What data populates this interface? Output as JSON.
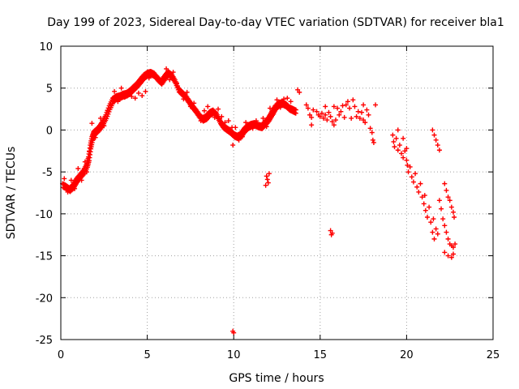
{
  "chart_data": {
    "type": "scatter",
    "title": "Day 199 of 2023, Sidereal Day-to-day VTEC variation (SDTVAR) for receiver bla1",
    "xlabel": "GPS time / hours",
    "ylabel": "SDTVAR / TECUs",
    "xlim": [
      0,
      25
    ],
    "ylim": [
      -25,
      10
    ],
    "xticks": [
      "0",
      "5",
      "10",
      "15",
      "20",
      "25"
    ],
    "yticks": [
      "10",
      "5",
      "0",
      "-5",
      "-10",
      "-15",
      "-20",
      "-25"
    ],
    "grid": true,
    "marker": "+",
    "color": "#ff0000",
    "series": [
      {
        "name": "SDTVAR",
        "trace": [
          [
            0.1,
            -6.4
          ],
          [
            0.3,
            -6.6
          ],
          [
            0.5,
            -6.9
          ],
          [
            0.7,
            -6.5
          ],
          [
            0.9,
            -5.8
          ],
          [
            1.1,
            -5.3
          ],
          [
            1.3,
            -4.8
          ],
          [
            1.5,
            -4.0
          ],
          [
            1.6,
            -3.2
          ],
          [
            1.7,
            -1.8
          ],
          [
            1.8,
            -0.8
          ],
          [
            1.9,
            -0.2
          ],
          [
            2.0,
            0.0
          ],
          [
            2.2,
            0.4
          ],
          [
            2.4,
            1.0
          ],
          [
            2.6,
            1.8
          ],
          [
            2.8,
            2.9
          ],
          [
            3.0,
            3.8
          ],
          [
            3.2,
            4.1
          ],
          [
            3.4,
            4.2
          ],
          [
            3.6,
            4.4
          ],
          [
            3.8,
            4.5
          ],
          [
            4.0,
            4.8
          ],
          [
            4.2,
            5.2
          ],
          [
            4.4,
            5.6
          ],
          [
            4.6,
            6.1
          ],
          [
            4.8,
            6.6
          ],
          [
            5.0,
            6.9
          ],
          [
            5.2,
            7.0
          ],
          [
            5.4,
            6.8
          ],
          [
            5.6,
            6.3
          ],
          [
            5.8,
            5.9
          ],
          [
            6.0,
            6.5
          ],
          [
            6.2,
            7.0
          ],
          [
            6.4,
            6.7
          ],
          [
            6.6,
            6.0
          ],
          [
            6.8,
            5.0
          ],
          [
            7.0,
            4.6
          ],
          [
            7.2,
            4.2
          ],
          [
            7.4,
            3.6
          ],
          [
            7.6,
            3.0
          ],
          [
            7.8,
            2.5
          ],
          [
            8.0,
            1.9
          ],
          [
            8.2,
            1.5
          ],
          [
            8.4,
            1.7
          ],
          [
            8.6,
            2.2
          ],
          [
            8.8,
            2.4
          ],
          [
            9.0,
            2.0
          ],
          [
            9.2,
            1.2
          ],
          [
            9.4,
            0.6
          ],
          [
            9.6,
            0.3
          ],
          [
            9.8,
            0.0
          ],
          [
            10.0,
            -0.4
          ],
          [
            10.2,
            -0.6
          ],
          [
            10.4,
            -0.4
          ],
          [
            10.6,
            0.2
          ],
          [
            10.8,
            0.6
          ],
          [
            11.0,
            0.8
          ],
          [
            11.2,
            0.9
          ],
          [
            11.4,
            0.7
          ],
          [
            11.6,
            0.6
          ],
          [
            11.8,
            1.0
          ],
          [
            12.0,
            1.5
          ],
          [
            12.2,
            2.2
          ],
          [
            12.4,
            2.9
          ],
          [
            12.6,
            3.3
          ],
          [
            12.8,
            3.4
          ],
          [
            13.0,
            3.2
          ],
          [
            13.2,
            2.8
          ],
          [
            13.4,
            2.6
          ],
          [
            13.6,
            2.4
          ]
        ],
        "points": [
          [
            0.2,
            -5.8
          ],
          [
            0.4,
            -7.4
          ],
          [
            0.6,
            -6.0
          ],
          [
            0.8,
            -7.0
          ],
          [
            1.0,
            -4.6
          ],
          [
            1.2,
            -6.0
          ],
          [
            1.4,
            -3.8
          ],
          [
            1.5,
            -5.0
          ],
          [
            1.65,
            -2.6
          ],
          [
            3.1,
            4.6
          ],
          [
            3.3,
            3.4
          ],
          [
            3.5,
            5.0
          ],
          [
            3.7,
            3.9
          ],
          [
            3.9,
            4.2
          ],
          [
            4.1,
            4.0
          ],
          [
            4.3,
            3.8
          ],
          [
            4.5,
            4.4
          ],
          [
            4.7,
            4.1
          ],
          [
            4.9,
            4.6
          ],
          [
            5.1,
            6.2
          ],
          [
            6.1,
            7.3
          ],
          [
            6.3,
            6.0
          ],
          [
            6.5,
            6.9
          ],
          [
            6.7,
            5.6
          ],
          [
            6.9,
            4.8
          ],
          [
            7.1,
            3.7
          ],
          [
            7.3,
            4.5
          ],
          [
            7.5,
            2.8
          ],
          [
            7.7,
            3.2
          ],
          [
            7.9,
            2.0
          ],
          [
            8.1,
            1.1
          ],
          [
            8.3,
            2.3
          ],
          [
            8.5,
            2.8
          ],
          [
            8.7,
            1.8
          ],
          [
            8.9,
            1.5
          ],
          [
            9.1,
            2.5
          ],
          [
            9.3,
            1.6
          ],
          [
            9.5,
            0.9
          ],
          [
            9.7,
            1.1
          ],
          [
            9.9,
            0.3
          ],
          [
            10.1,
            0.3
          ],
          [
            10.5,
            -0.8
          ],
          [
            10.7,
            0.9
          ],
          [
            10.9,
            0.4
          ],
          [
            11.1,
            0.2
          ],
          [
            11.3,
            1.1
          ],
          [
            11.5,
            0.3
          ],
          [
            11.7,
            1.4
          ],
          [
            11.9,
            0.4
          ],
          [
            12.1,
            2.6
          ],
          [
            12.3,
            1.9
          ],
          [
            12.5,
            3.6
          ],
          [
            12.7,
            2.7
          ],
          [
            12.9,
            3.7
          ],
          [
            13.1,
            3.8
          ],
          [
            13.3,
            3.4
          ],
          [
            1.8,
            0.8
          ],
          [
            2.0,
            -0.9
          ],
          [
            2.3,
            1.4
          ],
          [
            2.5,
            0.5
          ],
          [
            2.7,
            2.3
          ],
          [
            2.9,
            3.1
          ],
          [
            9.95,
            -1.8
          ],
          [
            10.3,
            -1.2
          ],
          [
            11.9,
            -5.5
          ],
          [
            11.95,
            -5.9
          ],
          [
            12.0,
            -6.3
          ],
          [
            11.85,
            -6.6
          ],
          [
            12.05,
            -5.2
          ],
          [
            9.95,
            -24.0
          ],
          [
            10.0,
            -24.2
          ],
          [
            15.6,
            -12.0
          ],
          [
            15.7,
            -12.3
          ],
          [
            15.65,
            -12.5
          ],
          [
            13.7,
            4.8
          ],
          [
            13.8,
            4.5
          ],
          [
            14.2,
            3.0
          ],
          [
            14.3,
            2.6
          ],
          [
            14.4,
            1.8
          ],
          [
            14.5,
            1.5
          ],
          [
            14.5,
            0.6
          ],
          [
            14.8,
            2.2
          ],
          [
            14.9,
            1.8
          ],
          [
            15.0,
            1.6
          ],
          [
            15.1,
            2.0
          ],
          [
            15.2,
            1.4
          ],
          [
            15.3,
            1.8
          ],
          [
            15.4,
            1.2
          ],
          [
            15.5,
            2.1
          ],
          [
            15.6,
            1.6
          ],
          [
            15.7,
            1.0
          ],
          [
            15.8,
            0.6
          ],
          [
            15.9,
            1.2
          ],
          [
            16.0,
            2.6
          ],
          [
            16.1,
            1.8
          ],
          [
            16.2,
            2.2
          ],
          [
            16.3,
            2.9
          ],
          [
            16.4,
            1.5
          ],
          [
            16.5,
            3.0
          ],
          [
            16.6,
            3.4
          ],
          [
            16.7,
            2.6
          ],
          [
            16.8,
            1.4
          ],
          [
            16.9,
            3.6
          ],
          [
            17.0,
            2.8
          ],
          [
            17.1,
            1.6
          ],
          [
            17.2,
            2.2
          ],
          [
            17.3,
            1.4
          ],
          [
            17.4,
            2.1
          ],
          [
            17.5,
            1.2
          ],
          [
            17.6,
            0.9
          ],
          [
            17.7,
            2.4
          ],
          [
            17.8,
            1.8
          ],
          [
            17.9,
            0.2
          ],
          [
            18.0,
            -0.3
          ],
          [
            18.05,
            -1.2
          ],
          [
            18.1,
            -1.5
          ],
          [
            17.5,
            3.0
          ],
          [
            18.2,
            3.0
          ],
          [
            15.3,
            2.8
          ],
          [
            14.6,
            2.4
          ],
          [
            15.8,
            2.8
          ],
          [
            19.2,
            -0.6
          ],
          [
            19.25,
            -1.4
          ],
          [
            19.3,
            -2.0
          ],
          [
            19.4,
            -1.0
          ],
          [
            19.5,
            -2.4
          ],
          [
            19.6,
            -1.8
          ],
          [
            19.7,
            -2.8
          ],
          [
            19.8,
            -3.3
          ],
          [
            19.9,
            -2.5
          ],
          [
            20.0,
            -3.6
          ],
          [
            20.05,
            -4.2
          ],
          [
            20.1,
            -5.0
          ],
          [
            20.2,
            -4.4
          ],
          [
            20.3,
            -5.6
          ],
          [
            20.4,
            -6.2
          ],
          [
            20.5,
            -5.2
          ],
          [
            20.6,
            -6.8
          ],
          [
            20.7,
            -7.4
          ],
          [
            20.8,
            -6.4
          ],
          [
            20.9,
            -8.0
          ],
          [
            21.0,
            -8.8
          ],
          [
            21.05,
            -7.8
          ],
          [
            21.1,
            -9.6
          ],
          [
            21.2,
            -10.4
          ],
          [
            21.3,
            -9.2
          ],
          [
            21.4,
            -11.0
          ],
          [
            21.5,
            -12.2
          ],
          [
            21.55,
            -10.6
          ],
          [
            21.6,
            -13.0
          ],
          [
            21.7,
            -11.8
          ],
          [
            21.8,
            -12.4
          ],
          [
            19.5,
            0.0
          ],
          [
            19.8,
            -1.0
          ],
          [
            20.0,
            -2.2
          ],
          [
            21.5,
            0.0
          ],
          [
            21.6,
            -0.6
          ],
          [
            21.7,
            -1.2
          ],
          [
            21.8,
            -1.8
          ],
          [
            21.9,
            -2.4
          ],
          [
            22.2,
            -6.4
          ],
          [
            22.3,
            -7.2
          ],
          [
            22.4,
            -8.0
          ],
          [
            22.5,
            -8.4
          ],
          [
            22.6,
            -9.2
          ],
          [
            22.7,
            -9.8
          ],
          [
            22.75,
            -10.4
          ],
          [
            21.9,
            -8.4
          ],
          [
            22.0,
            -9.4
          ],
          [
            22.1,
            -10.6
          ],
          [
            22.2,
            -11.4
          ],
          [
            22.3,
            -12.2
          ],
          [
            22.4,
            -13.0
          ],
          [
            22.5,
            -13.6
          ],
          [
            22.6,
            -13.8
          ],
          [
            22.7,
            -14.0
          ],
          [
            22.8,
            -13.6
          ],
          [
            22.2,
            -14.6
          ],
          [
            22.4,
            -15.0
          ],
          [
            22.6,
            -15.2
          ],
          [
            22.7,
            -14.8
          ]
        ]
      }
    ]
  }
}
